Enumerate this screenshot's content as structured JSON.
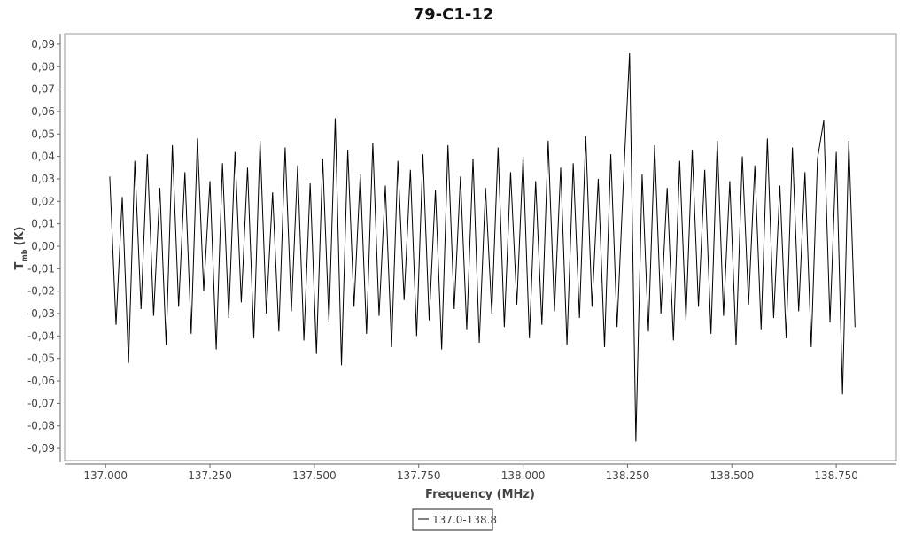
{
  "chart_data": {
    "type": "line",
    "title": "79-C1-12",
    "x_label": "Frequency (MHz)",
    "y_label": {
      "symbol": "T",
      "subscript": "mb",
      "unit": "(K)"
    },
    "xlim": [
      136.902,
      138.894
    ],
    "ylim": [
      -0.0955,
      0.0947
    ],
    "xticks": [
      {
        "value": 137,
        "label": "137.000"
      },
      {
        "value": 137.25,
        "label": "137.250"
      },
      {
        "value": 137.5,
        "label": "137.500"
      },
      {
        "value": 137.75,
        "label": "137.750"
      },
      {
        "value": 138,
        "label": "138.000"
      },
      {
        "value": 138.25,
        "label": "138.250"
      },
      {
        "value": 138.5,
        "label": "138.500"
      },
      {
        "value": 138.75,
        "label": "138.750"
      }
    ],
    "yticks": [
      {
        "value": 0.09,
        "label": "0,09"
      },
      {
        "value": 0.08,
        "label": "0,08"
      },
      {
        "value": 0.07,
        "label": "0,07"
      },
      {
        "value": 0.06,
        "label": "0,06"
      },
      {
        "value": 0.05,
        "label": "0,05"
      },
      {
        "value": 0.04,
        "label": "0,04"
      },
      {
        "value": 0.03,
        "label": "0,03"
      },
      {
        "value": 0.02,
        "label": "0,02"
      },
      {
        "value": 0.01,
        "label": "0,01"
      },
      {
        "value": 0,
        "label": "0,00"
      },
      {
        "value": -0.01,
        "label": "-0,01"
      },
      {
        "value": -0.02,
        "label": "-0,02"
      },
      {
        "value": -0.03,
        "label": "-0,03"
      },
      {
        "value": -0.04,
        "label": "-0,04"
      },
      {
        "value": -0.05,
        "label": "-0,05"
      },
      {
        "value": -0.06,
        "label": "-0,06"
      },
      {
        "value": -0.07,
        "label": "-0,07"
      },
      {
        "value": -0.08,
        "label": "-0,08"
      },
      {
        "value": -0.09,
        "label": "-0,09"
      }
    ],
    "x": [
      137.01,
      137.025,
      137.04,
      137.055,
      137.07,
      137.085,
      137.1,
      137.115,
      137.13,
      137.145,
      137.16,
      137.175,
      137.19,
      137.205,
      137.22,
      137.235,
      137.25,
      137.265,
      137.28,
      137.295,
      137.31,
      137.325,
      137.34,
      137.355,
      137.37,
      137.385,
      137.4,
      137.415,
      137.43,
      137.445,
      137.46,
      137.475,
      137.49,
      137.505,
      137.52,
      137.535,
      137.55,
      137.565,
      137.58,
      137.595,
      137.61,
      137.625,
      137.64,
      137.655,
      137.67,
      137.685,
      137.7,
      137.715,
      137.73,
      137.745,
      137.76,
      137.775,
      137.79,
      137.805,
      137.82,
      137.835,
      137.85,
      137.865,
      137.88,
      137.895,
      137.91,
      137.925,
      137.94,
      137.955,
      137.97,
      137.985,
      138,
      138.015,
      138.03,
      138.045,
      138.06,
      138.075,
      138.09,
      138.105,
      138.12,
      138.135,
      138.15,
      138.165,
      138.18,
      138.195,
      138.21,
      138.225,
      138.24,
      138.255,
      138.27,
      138.285,
      138.3,
      138.315,
      138.33,
      138.345,
      138.36,
      138.375,
      138.39,
      138.405,
      138.42,
      138.435,
      138.45,
      138.465,
      138.48,
      138.495,
      138.51,
      138.525,
      138.54,
      138.555,
      138.57,
      138.585,
      138.6,
      138.615,
      138.63,
      138.645,
      138.66,
      138.675,
      138.69,
      138.705,
      138.72,
      138.735,
      138.75,
      138.765,
      138.78,
      138.795
    ],
    "series": [
      {
        "name": "137.0-138.8",
        "color": "#000000",
        "values": [
          0.031,
          -0.035,
          0.022,
          -0.052,
          0.038,
          -0.028,
          0.041,
          -0.031,
          0.026,
          -0.044,
          0.045,
          -0.027,
          0.033,
          -0.039,
          0.048,
          -0.02,
          0.029,
          -0.046,
          0.037,
          -0.032,
          0.042,
          -0.025,
          0.035,
          -0.041,
          0.047,
          -0.03,
          0.024,
          -0.038,
          0.044,
          -0.029,
          0.036,
          -0.042,
          0.028,
          -0.048,
          0.039,
          -0.034,
          0.057,
          -0.053,
          0.043,
          -0.027,
          0.032,
          -0.039,
          0.046,
          -0.031,
          0.027,
          -0.045,
          0.038,
          -0.024,
          0.034,
          -0.04,
          0.041,
          -0.033,
          0.025,
          -0.046,
          0.045,
          -0.028,
          0.031,
          -0.037,
          0.039,
          -0.043,
          0.026,
          -0.03,
          0.044,
          -0.036,
          0.033,
          -0.026,
          0.04,
          -0.041,
          0.029,
          -0.035,
          0.047,
          -0.029,
          0.035,
          -0.044,
          0.037,
          -0.032,
          0.049,
          -0.027,
          0.03,
          -0.045,
          0.041,
          -0.036,
          0.028,
          0.086,
          -0.087,
          0.032,
          -0.038,
          0.045,
          -0.03,
          0.026,
          -0.042,
          0.038,
          -0.033,
          0.043,
          -0.027,
          0.034,
          -0.039,
          0.047,
          -0.031,
          0.029,
          -0.044,
          0.04,
          -0.026,
          0.036,
          -0.037,
          0.048,
          -0.032,
          0.027,
          -0.041,
          0.044,
          -0.029,
          0.033,
          -0.045,
          0.039,
          0.056,
          -0.034,
          0.042,
          -0.066,
          0.047,
          -0.036
        ]
      }
    ],
    "legend": "bottom"
  }
}
